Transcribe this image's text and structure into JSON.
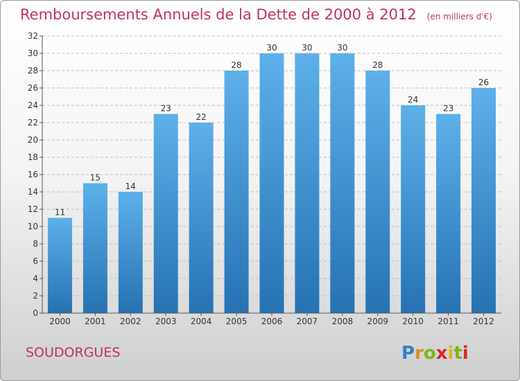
{
  "chart_data": {
    "type": "bar",
    "title": "Remboursements Annuels de la Dette de 2000 à 2012",
    "subtitle": "(en milliers d'€)",
    "xlabel": "",
    "ylabel": "",
    "categories": [
      "2000",
      "2001",
      "2002",
      "2003",
      "2004",
      "2005",
      "2006",
      "2007",
      "2008",
      "2009",
      "2010",
      "2011",
      "2012"
    ],
    "values": [
      11,
      15,
      14,
      23,
      22,
      28,
      30,
      30,
      30,
      28,
      24,
      23,
      26
    ],
    "ylim": [
      0,
      32
    ],
    "yticks": [
      0,
      2,
      4,
      6,
      8,
      10,
      12,
      14,
      16,
      18,
      20,
      22,
      24,
      26,
      28,
      30,
      32
    ],
    "grid": true,
    "bar_color": "#4a9ee0",
    "bar_color_dark": "#2878b8",
    "data_labels": true
  },
  "commune": "SOUDORGUES",
  "logo": {
    "letters": [
      "P",
      "r",
      "o",
      "x",
      "i",
      "t",
      "i"
    ],
    "colors": [
      "#2f7fcf",
      "#e08a1c",
      "#7ab51d",
      "#d8262a",
      "#e0b21c",
      "#7ab51d",
      "#d8262a"
    ]
  }
}
